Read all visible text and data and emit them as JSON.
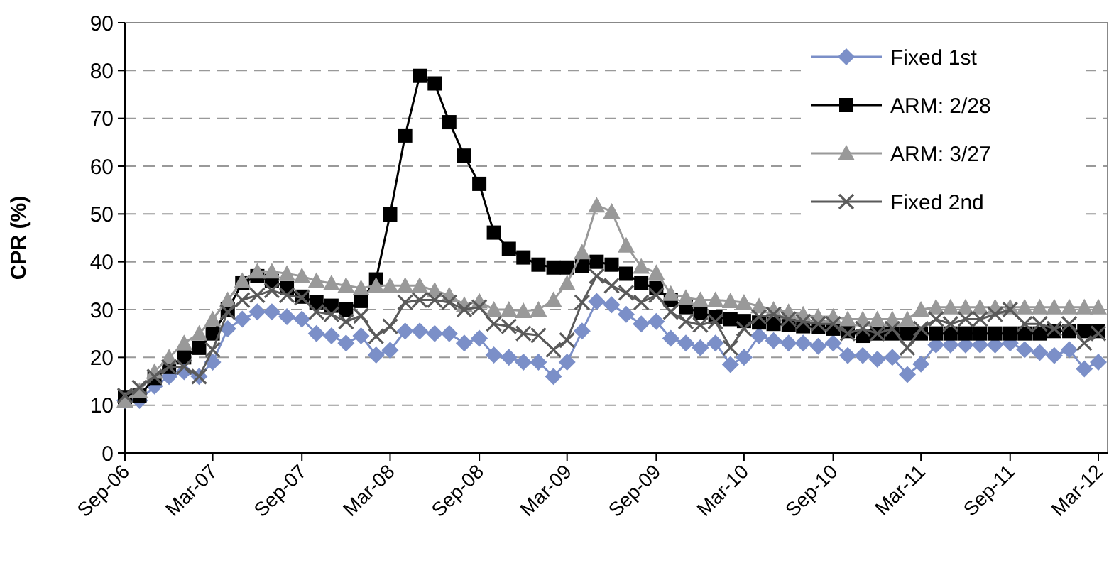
{
  "chart_data": {
    "type": "line",
    "ylabel": "CPR (%)",
    "ylim": [
      0,
      90
    ],
    "yticks": [
      0,
      10,
      20,
      30,
      40,
      50,
      60,
      70,
      80,
      90
    ],
    "xlim": [
      "2006-09",
      "2012-03-20"
    ],
    "xticks": [
      {
        "value": "2006-09",
        "label": "Sep-06"
      },
      {
        "value": "2007-03",
        "label": "Mar-07"
      },
      {
        "value": "2007-09",
        "label": "Sep-07"
      },
      {
        "value": "2008-03",
        "label": "Mar-08"
      },
      {
        "value": "2008-09",
        "label": "Sep-08"
      },
      {
        "value": "2009-03",
        "label": "Mar-09"
      },
      {
        "value": "2009-09",
        "label": "Sep-09"
      },
      {
        "value": "2010-03",
        "label": "Mar-10"
      },
      {
        "value": "2010-09",
        "label": "Sep-10"
      },
      {
        "value": "2011-03",
        "label": "Mar-11"
      },
      {
        "value": "2011-09",
        "label": "Sep-11"
      },
      {
        "value": "2012-03",
        "label": "Mar-12"
      }
    ],
    "x": [
      "2006-09",
      "2006-10",
      "2006-11",
      "2006-12",
      "2007-01",
      "2007-02",
      "2007-03",
      "2007-04",
      "2007-05",
      "2007-06",
      "2007-07",
      "2007-08",
      "2007-09",
      "2007-10",
      "2007-11",
      "2007-12",
      "2008-01",
      "2008-02",
      "2008-03",
      "2008-04",
      "2008-05",
      "2008-06",
      "2008-07",
      "2008-08",
      "2008-09",
      "2008-10",
      "2008-11",
      "2008-12",
      "2009-01",
      "2009-02",
      "2009-03",
      "2009-04",
      "2009-05",
      "2009-06",
      "2009-07",
      "2009-08",
      "2009-09",
      "2009-10",
      "2009-11",
      "2009-12",
      "2010-01",
      "2010-02",
      "2010-03",
      "2010-04",
      "2010-05",
      "2010-06",
      "2010-07",
      "2010-08",
      "2010-09",
      "2010-10",
      "2010-11",
      "2010-12",
      "2011-01",
      "2011-02",
      "2011-03",
      "2011-04",
      "2011-05",
      "2011-06",
      "2011-07",
      "2011-08",
      "2011-09",
      "2011-10",
      "2011-11",
      "2011-12",
      "2012-01",
      "2012-02",
      "2012-03"
    ],
    "grid": "y",
    "legend": "top right",
    "line_style": "solid",
    "series": [
      {
        "name": "Fixed 1st",
        "color": "#7b8fc8",
        "marker": "diamond",
        "values": [
          11,
          11,
          14,
          16,
          17,
          16,
          19,
          26,
          28,
          29.5,
          29.5,
          28.5,
          28,
          25,
          24.5,
          23,
          24.5,
          20.5,
          21.5,
          25.5,
          25.5,
          25,
          25,
          23,
          24,
          20.5,
          20,
          19,
          19,
          16,
          19,
          25.5,
          31.7,
          31,
          29,
          27,
          27.5,
          24,
          23,
          22,
          23,
          18.5,
          20,
          24.5,
          23.5,
          23,
          23,
          22.3,
          23,
          20.4,
          20.4,
          19.6,
          20,
          16.4,
          18.6,
          22.6,
          22.6,
          22.6,
          22.6,
          22.6,
          23,
          21.6,
          21,
          20.4,
          21.6,
          17.6,
          19
        ]
      },
      {
        "name": "ARM: 2/28",
        "color": "#000000",
        "marker": "square",
        "values": [
          11.7,
          12,
          15.7,
          18,
          20,
          22,
          25,
          30,
          35.5,
          37,
          36,
          34.5,
          32.7,
          31.5,
          30.8,
          30,
          31.8,
          36.3,
          49.9,
          66.4,
          78.9,
          77.3,
          69.2,
          62.2,
          56.3,
          46.1,
          42.7,
          40.9,
          39.4,
          38.8,
          38.8,
          39.2,
          40,
          39.4,
          37.5,
          35.5,
          34.5,
          32,
          30.5,
          29.3,
          28.5,
          28,
          27.6,
          27.3,
          27,
          26.8,
          26.5,
          26.3,
          26,
          25.5,
          24.5,
          25,
          25,
          25,
          25,
          25,
          25,
          25,
          25,
          25,
          25,
          25,
          25,
          25.5,
          25.5,
          25.5,
          25.5
        ]
      },
      {
        "name": "ARM: 3/27",
        "color": "#999999",
        "marker": "triangle",
        "values": [
          11,
          13,
          17,
          20,
          23,
          25,
          28,
          32,
          36,
          38,
          38,
          37.5,
          37,
          36,
          35.5,
          35,
          34.5,
          35,
          35,
          35,
          35,
          34,
          33,
          31,
          31.7,
          30,
          30,
          29.7,
          30,
          32,
          35.5,
          42,
          51.8,
          50.5,
          43.4,
          39,
          37.7,
          33.3,
          32.5,
          32,
          32,
          31.8,
          31.5,
          30.7,
          30,
          29.5,
          29,
          28.5,
          28.5,
          28,
          28,
          28,
          28,
          28,
          30,
          30.5,
          30.5,
          30.5,
          30.5,
          30.5,
          30.5,
          30.5,
          30.5,
          30.5,
          30.5,
          30.5,
          30.5
        ]
      },
      {
        "name": "Fixed 2nd",
        "color": "#5a5a5a",
        "marker": "cross",
        "values": [
          12,
          13.7,
          16,
          18,
          18,
          16,
          21.6,
          29.5,
          32,
          33,
          34,
          33,
          32.5,
          29.5,
          29,
          27.5,
          28.7,
          24.4,
          26.5,
          31.5,
          32,
          32,
          31.5,
          30,
          30.5,
          27,
          26.5,
          25,
          24.6,
          21.6,
          23.6,
          31.5,
          37,
          35,
          33.5,
          31.5,
          33,
          29.5,
          27.5,
          26.8,
          27.5,
          22,
          26,
          28.5,
          29,
          28,
          27.5,
          27,
          27,
          25,
          26,
          25,
          26,
          22,
          26,
          28,
          27,
          28,
          28,
          29,
          30,
          27,
          27,
          26,
          27,
          23,
          25
        ]
      }
    ]
  }
}
